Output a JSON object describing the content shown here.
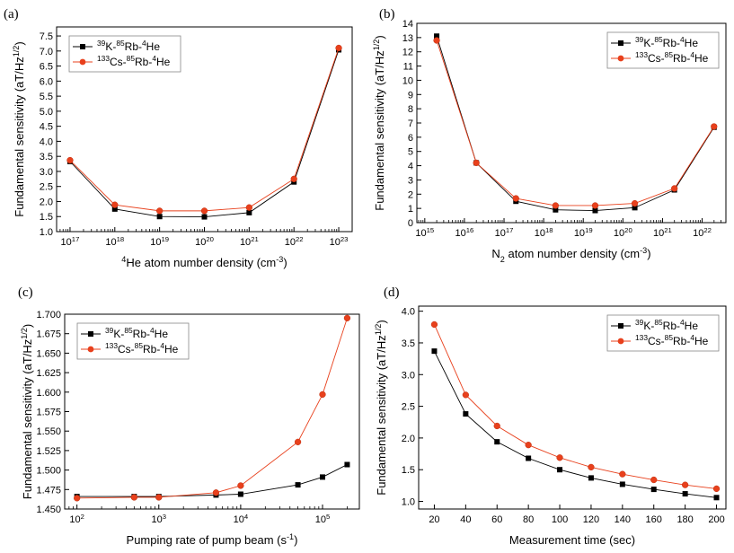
{
  "colors": {
    "black_series": "#000000",
    "red_series": "#e8401c"
  },
  "panels": [
    {
      "label": "(a)",
      "xscale": "log",
      "xlabel": "⁴He atom number density (cm⁻³)",
      "ylabel": "Fundamental sensitivity (aT/Hz¹ᐟ²)",
      "legend": [
        "³⁹K-⁸⁵Rb-⁴He",
        "¹³³Cs-⁸⁵Rb-⁴He"
      ]
    },
    {
      "label": "(b)",
      "xscale": "log",
      "xlabel": "N₂ atom number density (cm⁻³)",
      "ylabel": "Fundamental sensitivity (aT/Hz¹ᐟ²)",
      "legend": [
        "³⁹K-⁸⁵Rb-⁴He",
        "¹³³Cs-⁸⁵Rb-⁴He"
      ]
    },
    {
      "label": "(c)",
      "xscale": "log",
      "xlabel": "Pumping rate of pump beam (s⁻¹)",
      "ylabel": "Fundamental sensitivity (aT/Hz¹ᐟ²)",
      "legend": [
        "³⁹K-⁸⁵Rb-⁴He",
        "¹³³Cs-⁸⁵Rb-⁴He"
      ]
    },
    {
      "label": "(d)",
      "xscale": "linear",
      "xlabel": "Measurement time (sec)",
      "ylabel": "Fundamental sensitivity (aT/Hz¹ᐟ²)",
      "legend": [
        "³⁹K-⁸⁵Rb-⁴He",
        "¹³³Cs-⁸⁵Rb-⁴He"
      ]
    }
  ],
  "chart_data": [
    {
      "type": "line",
      "title": "(a)",
      "xlabel": "4He atom number density (cm-3)",
      "ylabel": "Fundamental sensitivity (aT/Hz1/2)",
      "xlim_exp": [
        16.7,
        23.3
      ],
      "ylim": [
        1.0,
        7.8
      ],
      "xticks_exp": [
        17,
        18,
        19,
        20,
        21,
        22,
        23
      ],
      "yticks": [
        1.0,
        1.5,
        2.0,
        2.5,
        3.0,
        3.5,
        4.0,
        4.5,
        5.0,
        5.5,
        6.0,
        6.5,
        7.0,
        7.5
      ],
      "ytick_decimals": 1,
      "legend_loc": "top-left",
      "series": [
        {
          "name": "39K-85Rb-4He",
          "marker": "square",
          "x_exp": [
            17,
            18,
            19,
            20,
            21,
            22,
            23
          ],
          "values": [
            3.33,
            1.75,
            1.5,
            1.49,
            1.63,
            2.65,
            7.04
          ]
        },
        {
          "name": "133Cs-85Rb-4He",
          "marker": "circle",
          "x_exp": [
            17,
            18,
            19,
            20,
            21,
            22,
            23
          ],
          "values": [
            3.37,
            1.89,
            1.69,
            1.69,
            1.8,
            2.75,
            7.1
          ]
        }
      ]
    },
    {
      "type": "line",
      "title": "(b)",
      "xlabel": "N2 atom number density (cm-3)",
      "ylabel": "Fundamental sensitivity (aT/Hz1/2)",
      "xlim_exp": [
        14.8,
        22.6
      ],
      "ylim": [
        0,
        14
      ],
      "xticks_exp": [
        15,
        16,
        17,
        18,
        19,
        20,
        21,
        22
      ],
      "yticks": [
        0,
        1,
        2,
        3,
        4,
        5,
        6,
        7,
        8,
        9,
        10,
        11,
        12,
        13,
        14
      ],
      "ytick_decimals": 0,
      "legend_loc": "top-right",
      "series": [
        {
          "name": "39K-85Rb-4He",
          "marker": "square",
          "x_exp": [
            15.3,
            16.3,
            17.3,
            18.3,
            19.3,
            20.3,
            21.3,
            22.3
          ],
          "values": [
            13.1,
            4.2,
            1.5,
            0.9,
            0.85,
            1.05,
            2.3,
            6.7
          ]
        },
        {
          "name": "133Cs-85Rb-4He",
          "marker": "circle",
          "x_exp": [
            15.3,
            16.3,
            17.3,
            18.3,
            19.3,
            20.3,
            21.3,
            22.3
          ],
          "values": [
            12.8,
            4.2,
            1.7,
            1.2,
            1.2,
            1.35,
            2.4,
            6.75
          ]
        }
      ]
    },
    {
      "type": "line",
      "title": "(c)",
      "xlabel": "Pumping rate of pump beam (s-1)",
      "ylabel": "Fundamental sensitivity (aT/Hz1/2)",
      "xlim_exp": [
        1.85,
        5.45
      ],
      "ylim": [
        1.45,
        1.7
      ],
      "xticks_exp": [
        2,
        3,
        4,
        5
      ],
      "yticks": [
        1.45,
        1.475,
        1.5,
        1.525,
        1.55,
        1.575,
        1.6,
        1.625,
        1.65,
        1.675,
        1.7
      ],
      "ytick_decimals": 3,
      "legend_loc": "top-left",
      "series": [
        {
          "name": "39K-85Rb-4He",
          "marker": "square",
          "x": [
            100,
            500,
            1000,
            5000,
            10000,
            50000,
            100000,
            200000
          ],
          "values": [
            1.466,
            1.466,
            1.466,
            1.468,
            1.469,
            1.481,
            1.491,
            1.507
          ]
        },
        {
          "name": "133Cs-85Rb-4He",
          "marker": "circle",
          "x": [
            100,
            500,
            1000,
            5000,
            10000,
            50000,
            100000,
            200000
          ],
          "values": [
            1.464,
            1.465,
            1.465,
            1.471,
            1.48,
            1.536,
            1.597,
            1.695
          ]
        }
      ]
    },
    {
      "type": "line",
      "title": "(d)",
      "xlabel": "Measurement time (sec)",
      "ylabel": "Fundamental sensitivity (aT/Hz1/2)",
      "xlim": [
        10,
        206
      ],
      "ylim": [
        0.88,
        4.08
      ],
      "xticks": [
        20,
        40,
        60,
        80,
        100,
        120,
        140,
        160,
        180,
        200
      ],
      "yticks": [
        1.0,
        1.5,
        2.0,
        2.5,
        3.0,
        3.5,
        4.0
      ],
      "ytick_decimals": 1,
      "legend_loc": "top-right",
      "series": [
        {
          "name": "39K-85Rb-4He",
          "marker": "square",
          "x": [
            20,
            40,
            60,
            80,
            100,
            120,
            140,
            160,
            180,
            200
          ],
          "values": [
            3.37,
            2.38,
            1.94,
            1.68,
            1.5,
            1.37,
            1.27,
            1.19,
            1.12,
            1.06
          ]
        },
        {
          "name": "133Cs-85Rb-4He",
          "marker": "circle",
          "x": [
            20,
            40,
            60,
            80,
            100,
            120,
            140,
            160,
            180,
            200
          ],
          "values": [
            3.79,
            2.68,
            2.19,
            1.89,
            1.69,
            1.54,
            1.43,
            1.34,
            1.26,
            1.2
          ]
        }
      ]
    }
  ]
}
